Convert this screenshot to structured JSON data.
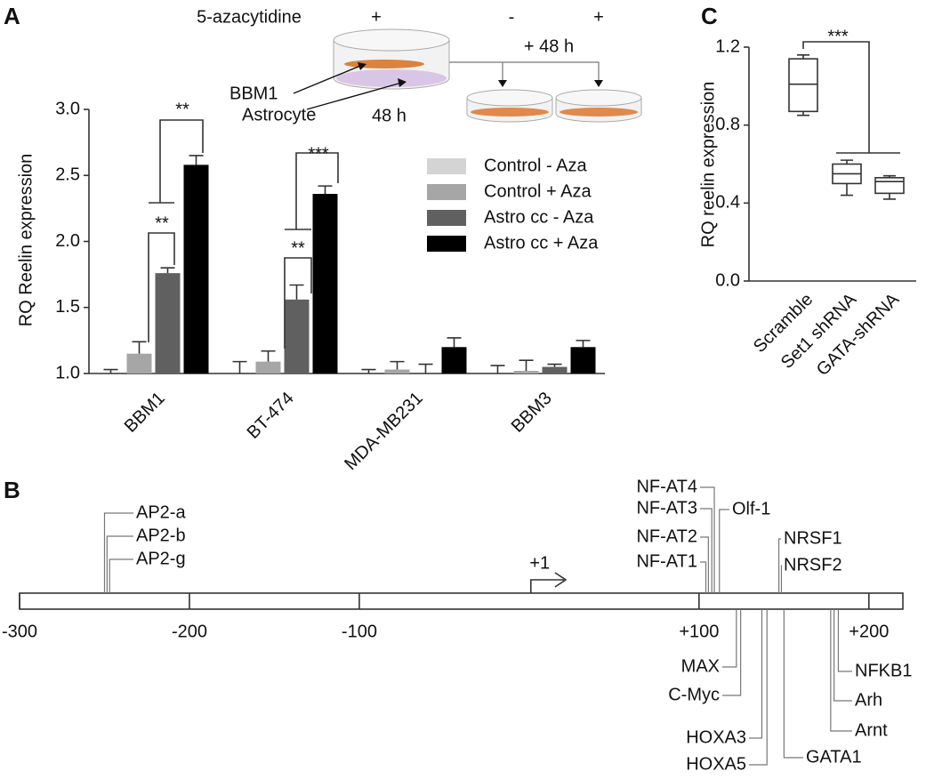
{
  "chart_data": [
    {
      "type": "bar",
      "panel": "A",
      "y_label": "RQ Reelin expression",
      "categories": [
        "BBM1",
        "BT-474",
        "MDA-MB231",
        "BBM3"
      ],
      "series": [
        {
          "name": "Control - Aza",
          "color": "#d4d4d4",
          "values": [
            1.0,
            1.0,
            1.0,
            1.0
          ],
          "errors": [
            0.03,
            0.09,
            0.03,
            0.06
          ]
        },
        {
          "name": "Control + Aza",
          "color": "#a6a6a6",
          "values": [
            1.15,
            1.09,
            1.03,
            1.02
          ],
          "errors": [
            0.09,
            0.08,
            0.06,
            0.08
          ]
        },
        {
          "name": "Astro cc - Aza",
          "color": "#606060",
          "values": [
            1.76,
            1.56,
            1.0,
            1.05
          ],
          "errors": [
            0.04,
            0.11,
            0.07,
            0.02
          ]
        },
        {
          "name": "Astro cc + Aza",
          "color": "#000000",
          "values": [
            2.58,
            2.36,
            1.2,
            1.2
          ],
          "errors": [
            0.07,
            0.06,
            0.07,
            0.05
          ]
        }
      ],
      "ylim": [
        1,
        3
      ],
      "yticks": [
        {
          "value": 1,
          "label": "1.0"
        },
        1.5,
        {
          "value": 2,
          "label": "2.0"
        },
        2.5,
        {
          "value": 3,
          "label": "3.0"
        }
      ],
      "legend": "upper right",
      "annotations": [
        "**",
        "**",
        "***",
        "**"
      ],
      "inset": {
        "title": "5-azacytidine",
        "conditions": [
          "+",
          "-",
          "+"
        ],
        "time_added": "+ 48 h",
        "cell_labels": [
          "BBM1",
          "Astrocyte"
        ],
        "time": "48 h"
      }
    },
    {
      "type": "site_map",
      "panel": "B",
      "xlim": [
        -300,
        220
      ],
      "xticks": [
        -300,
        -200,
        -100,
        {
          "value": 100,
          "label": "+100"
        },
        {
          "value": 200,
          "label": "+200"
        }
      ],
      "start": {
        "value": 1,
        "label": "+1"
      },
      "sites": [
        {
          "name": "AP2-a",
          "position": -250
        },
        {
          "name": "AP2-b",
          "position": -248.5
        },
        {
          "name": "AP2-g",
          "position": -247
        },
        {
          "name": "NF-AT4",
          "position": 109
        },
        {
          "name": "NF-AT3",
          "position": 107.5
        },
        {
          "name": "NF-AT2",
          "position": 105.5
        },
        {
          "name": "NF-AT1",
          "position": 104
        },
        {
          "name": "Olf-1",
          "position": 112
        },
        {
          "name": "NRSF1",
          "position": 147
        },
        {
          "name": "NRSF2",
          "position": 148.5
        },
        {
          "name": "MAX",
          "position": 122
        },
        {
          "name": "C-Myc",
          "position": 124.5
        },
        {
          "name": "HOXA3",
          "position": 137
        },
        {
          "name": "HOXA5",
          "position": 140
        },
        {
          "name": "GATA1",
          "position": 150
        },
        {
          "name": "NFKB1",
          "position": 182
        },
        {
          "name": "Arh",
          "position": 179.5
        },
        {
          "name": "Arnt",
          "position": 177.5
        }
      ]
    },
    {
      "type": "box",
      "panel": "C",
      "y_label": "RQ reelin expression",
      "categories": [
        "Scramble",
        "Set1 shRNA",
        "GATA-shRNA"
      ],
      "min": [
        0.85,
        0.44,
        0.42
      ],
      "q1": [
        0.87,
        0.5,
        0.45
      ],
      "median": [
        1.01,
        0.55,
        0.51
      ],
      "q3": [
        1.14,
        0.6,
        0.53
      ],
      "max": [
        1.16,
        0.62,
        0.54
      ],
      "ylim": [
        0,
        1.2
      ],
      "yticks": [
        {
          "value": 0,
          "label": "0.0"
        },
        {
          "value": 0.4,
          "label": "0.4"
        },
        {
          "value": 0.8,
          "label": "0.8"
        },
        {
          "value": 1.2,
          "label": "1.2"
        }
      ],
      "annotations": [
        "***"
      ]
    }
  ]
}
